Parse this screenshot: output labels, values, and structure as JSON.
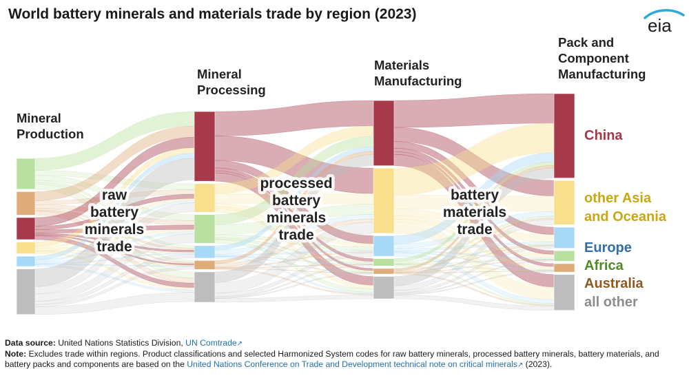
{
  "title": "World battery minerals and materials trade by region (2023)",
  "logo_text": "eia",
  "colors": {
    "China": "#a63a4a",
    "other Asia and Oceania": "#f8df8e",
    "Europe": "#a7d8f6",
    "Africa": "#b9e0a0",
    "Australia": "#deab7a",
    "all other": "#bdbdbd",
    "China_label": "#a03a48",
    "other Asia and Oceania_label": "#c9a712",
    "Europe_label": "#2f6fa8",
    "Africa_label": "#4f8a24",
    "Australia_label": "#8c5a22",
    "all other_label": "#8c8c8c"
  },
  "chart_data": {
    "type": "sankey",
    "title": "World battery minerals and materials trade by region (2023)",
    "stages": [
      {
        "name": "Mineral Production",
        "label_lines": [
          "Mineral",
          "Production"
        ],
        "nodes": [
          {
            "region": "Africa",
            "share": 0.21
          },
          {
            "region": "Australia",
            "share": 0.16
          },
          {
            "region": "China",
            "share": 0.15
          },
          {
            "region": "other Asia and Oceania",
            "share": 0.08
          },
          {
            "region": "Europe",
            "share": 0.07
          },
          {
            "region": "all other",
            "share": 0.31
          }
        ]
      },
      {
        "name": "Mineral Processing",
        "label_lines": [
          "Mineral",
          "Processing"
        ],
        "nodes": [
          {
            "region": "China",
            "share": 0.39
          },
          {
            "region": "other Asia and Oceania",
            "share": 0.16
          },
          {
            "region": "Africa",
            "share": 0.16
          },
          {
            "region": "Europe",
            "share": 0.07
          },
          {
            "region": "Australia",
            "share": 0.05
          },
          {
            "region": "all other",
            "share": 0.17
          }
        ]
      },
      {
        "name": "Materials Manufacturing",
        "label_lines": [
          "Materials",
          "Manufacturing"
        ],
        "nodes": [
          {
            "region": "China",
            "share": 0.35
          },
          {
            "region": "other Asia and Oceania",
            "share": 0.35
          },
          {
            "region": "Europe",
            "share": 0.11
          },
          {
            "region": "Africa",
            "share": 0.04
          },
          {
            "region": "Australia",
            "share": 0.03
          },
          {
            "region": "all other",
            "share": 0.12
          }
        ]
      },
      {
        "name": "Pack and Component Manufacturing",
        "label_lines": [
          "Pack and",
          "Component",
          "Manufacturing"
        ],
        "nodes": [
          {
            "region": "China",
            "share": 0.4
          },
          {
            "region": "other Asia and Oceania",
            "share": 0.21
          },
          {
            "region": "Europe",
            "share": 0.1
          },
          {
            "region": "Africa",
            "share": 0.05
          },
          {
            "region": "Australia",
            "share": 0.04
          },
          {
            "region": "all other",
            "share": 0.17
          }
        ]
      }
    ],
    "trade_labels": [
      {
        "lines": [
          "raw",
          "battery",
          "minerals",
          "trade"
        ]
      },
      {
        "lines": [
          "processed",
          "battery",
          "minerals",
          "trade"
        ]
      },
      {
        "lines": [
          "battery",
          "materials",
          "trade"
        ]
      }
    ],
    "legend": [
      {
        "region": "China",
        "lines": [
          "China"
        ]
      },
      {
        "region": "other Asia and Oceania",
        "lines": [
          "other Asia",
          "and Oceania"
        ]
      },
      {
        "region": "Europe",
        "lines": [
          "Europe"
        ]
      },
      {
        "region": "Africa",
        "lines": [
          "Africa"
        ]
      },
      {
        "region": "Australia",
        "lines": [
          "Australia"
        ]
      },
      {
        "region": "all other",
        "lines": [
          "all other"
        ]
      }
    ],
    "legend_placement": "right"
  },
  "footer": {
    "source_label": "Data source:",
    "source_text": "United Nations Statistics Division,",
    "source_link": "UN Comtrade",
    "note_label": "Note:",
    "note_text": "Excludes trade within regions. Product classifications and selected Harmonized System codes for raw battery minerals, processed battery minerals, battery materials, and battery packs and components are based on the",
    "note_link": "United Nations Conference on Trade and Development technical note on critical minerals",
    "note_end": "(2023).",
    "ext_icon": "↗"
  }
}
